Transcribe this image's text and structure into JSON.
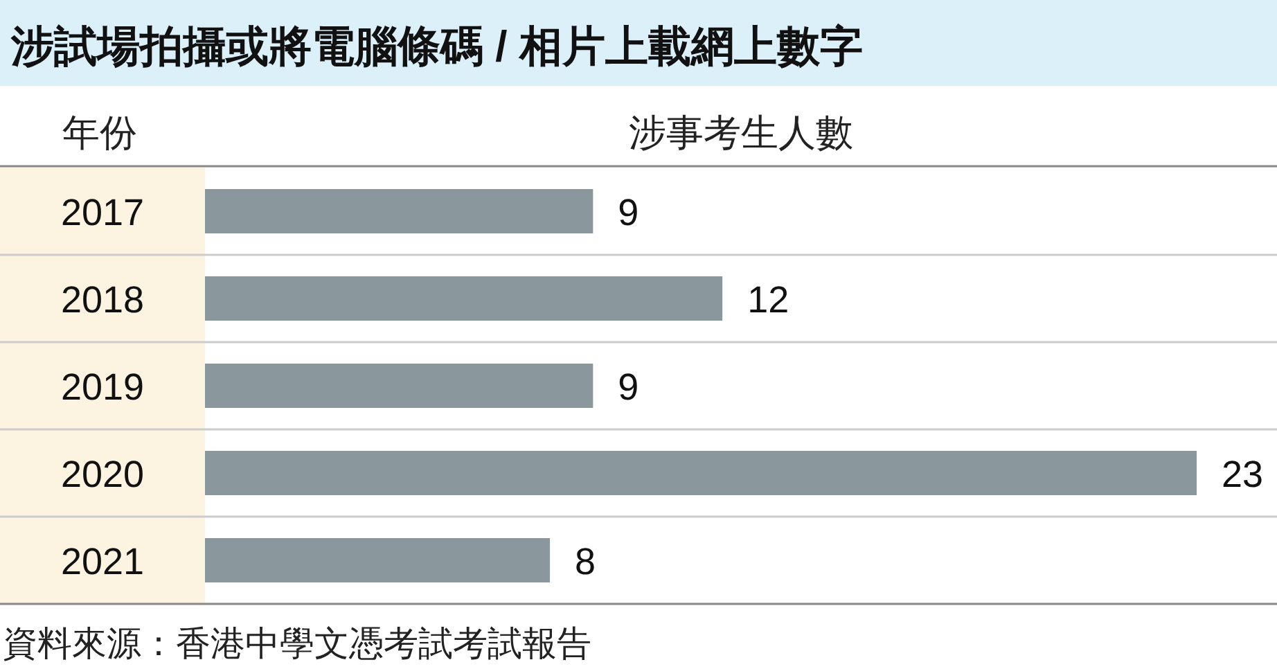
{
  "chart_data": {
    "type": "bar",
    "orientation": "horizontal",
    "title": "涉試場拍攝或將電腦條碼 / 相片上載網上數字",
    "ylabel": "年份",
    "xlabel": "涉事考生人數",
    "categories": [
      "2017",
      "2018",
      "2019",
      "2020",
      "2021"
    ],
    "values": [
      9,
      12,
      9,
      23,
      8
    ],
    "color": "#8a979c",
    "data_labels": true,
    "annotations": [
      "資料來源：香港中學文憑考試考試報告"
    ]
  }
}
